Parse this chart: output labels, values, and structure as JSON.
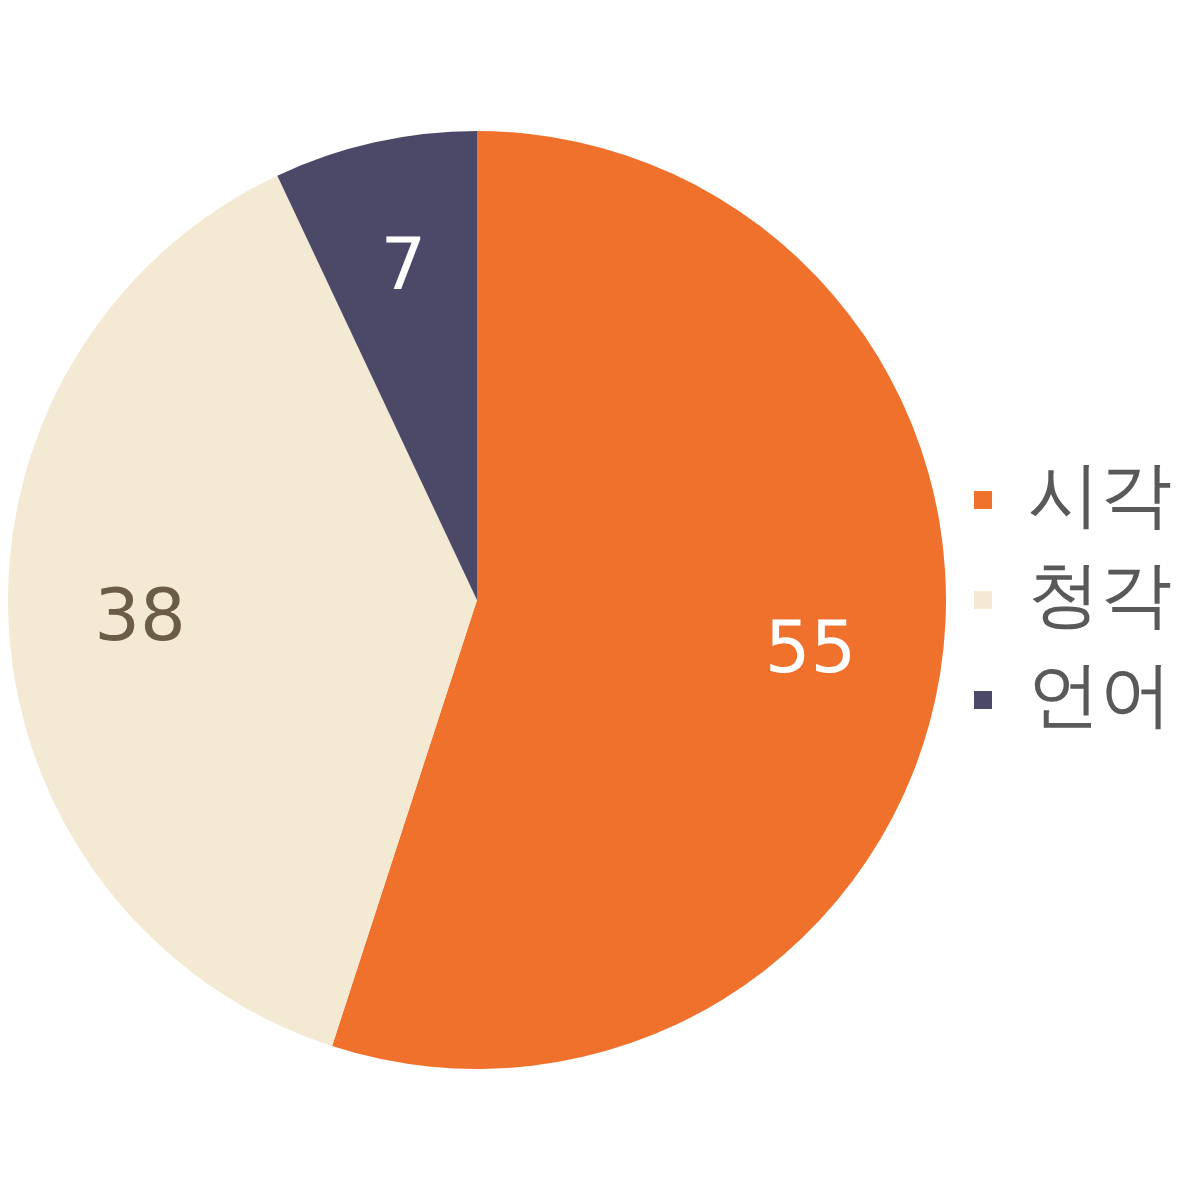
{
  "chart_data": {
    "type": "pie",
    "categories": [
      "시각",
      "청각",
      "언어"
    ],
    "values": [
      55,
      38,
      7
    ],
    "colors": [
      "#ef712c",
      "#f4ead3",
      "#4b4868"
    ],
    "legend": "right",
    "data_labels": true
  }
}
